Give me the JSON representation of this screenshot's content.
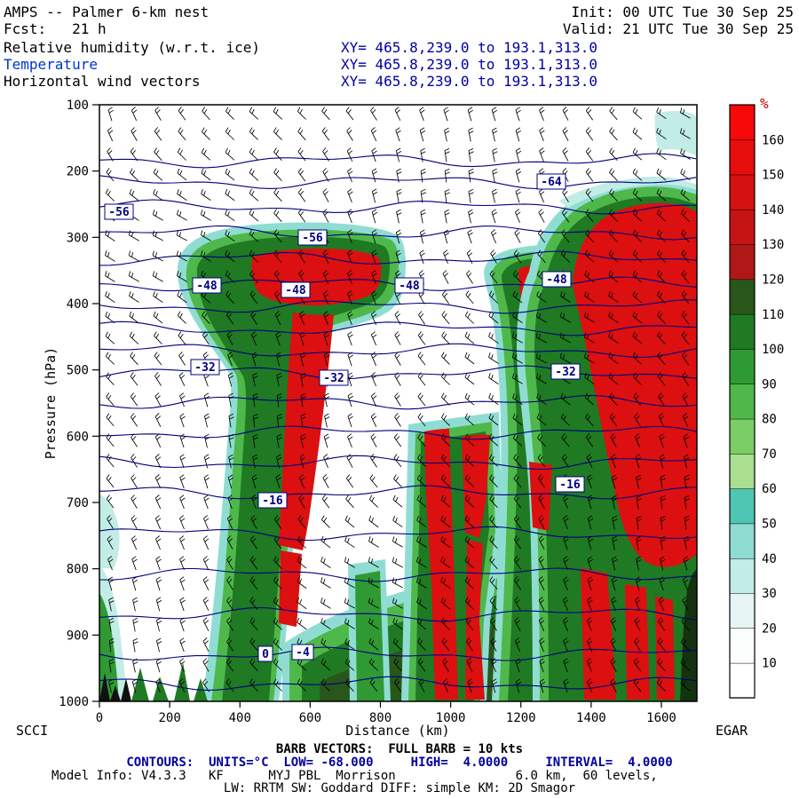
{
  "header": {
    "model_title": "AMPS -- Palmer 6-km nest",
    "forecast_hour": "Fcst:   21 h",
    "field_rh": "Relative humidity (w.r.t. ice)",
    "field_temperature": "Temperature",
    "field_wind": "Horizontal wind vectors",
    "init_time": "Init: 00 UTC Tue 30 Sep 25",
    "valid_time": "Valid: 21 UTC Tue 30 Sep 25",
    "xy_line1": "XY= 465.8,239.0 to 193.1,313.0",
    "xy_line2": "XY= 465.8,239.0 to 193.1,313.0",
    "xy_line3": "XY= 465.8,239.0 to 193.1,313.0"
  },
  "footer": {
    "barb_line": "BARB VECTORS:  FULL BARB = 10 kts",
    "contours_line": "CONTOURS:  UNITS=°C  LOW= -68.000     HIGH=  4.0000     INTERVAL=  4.0000",
    "model_line": "Model Info: V4.3.3   KF      MYJ PBL  Morrison                6.0 km,  60 levels,",
    "physics_line": "LW: RRTM SW: Goddard DIFF: simple KM: 2D Smagor"
  },
  "chart_data": {
    "type": "contour-cross-section",
    "title": "Relative humidity (w.r.t. ice), temperature contours, horizontal wind vectors",
    "xlabel": "Distance (km)",
    "ylabel": "Pressure (hPa)",
    "xlim": [
      0,
      1700
    ],
    "ylim": [
      100,
      1000
    ],
    "x_ticks": [
      0,
      200,
      400,
      600,
      800,
      1000,
      1200,
      1400,
      1600
    ],
    "y_ticks": [
      100,
      200,
      300,
      400,
      500,
      600,
      700,
      800,
      900,
      1000
    ],
    "stations": {
      "left": "SCCI",
      "right": "EGAR"
    },
    "colorbar": {
      "unit": "%",
      "tick_labels": [
        160,
        150,
        140,
        130,
        120,
        110,
        100,
        90,
        80,
        70,
        60,
        50,
        40,
        30,
        20,
        10
      ],
      "colors_bottom_to_top": [
        "#FFFFFF",
        "#FBFDFD",
        "#E6F5F3",
        "#C2ECE6",
        "#8FDDD2",
        "#4FC6B4",
        "#A9DF8F",
        "#7BCE66",
        "#4FB84B",
        "#2F9A33",
        "#1F7A23",
        "#29561B",
        "#B01717",
        "#C41414",
        "#D51111",
        "#E60D0D",
        "#F50909"
      ]
    },
    "palette": {
      "white": "#FFFFFF",
      "cyan_light": "#C2ECE6",
      "cyan": "#8FDDD2",
      "teal": "#4FC6B4",
      "green_light": "#7BCE66",
      "green": "#4FB84B",
      "green_mid": "#2F9A33",
      "green_dark": "#1F7A23",
      "olive_dark": "#29561B",
      "red": "#DC1010",
      "terrain": "#14320F",
      "contour_navy": "#000080"
    },
    "temperature_contours": {
      "units": "°C",
      "low": -68.0,
      "high": 4.0,
      "interval": 4.0,
      "values": [
        4,
        0,
        -4,
        -8,
        -12,
        -16,
        -20,
        -24,
        -28,
        -32,
        -36,
        -40,
        -44,
        -48,
        -52,
        -56,
        -60,
        -64,
        -68
      ],
      "labels": [
        {
          "text": "-64",
          "x": 621,
          "y": 205
        },
        {
          "text": "-56",
          "x": 134,
          "y": 239
        },
        {
          "text": "-56",
          "x": 352,
          "y": 268
        },
        {
          "text": "-48",
          "x": 233,
          "y": 322
        },
        {
          "text": "-48",
          "x": 333,
          "y": 327
        },
        {
          "text": "-48",
          "x": 461,
          "y": 322
        },
        {
          "text": "-48",
          "x": 627,
          "y": 315
        },
        {
          "text": "-32",
          "x": 231,
          "y": 414
        },
        {
          "text": "-32",
          "x": 376,
          "y": 426
        },
        {
          "text": "-32",
          "x": 637,
          "y": 419
        },
        {
          "text": "-16",
          "x": 307,
          "y": 564
        },
        {
          "text": "-16",
          "x": 642,
          "y": 546
        },
        {
          "text": "0",
          "x": 299,
          "y": 737
        },
        {
          "text": "-4",
          "x": 341,
          "y": 735
        }
      ]
    },
    "wind_barbs": {
      "full_barb_kts": 10
    }
  }
}
